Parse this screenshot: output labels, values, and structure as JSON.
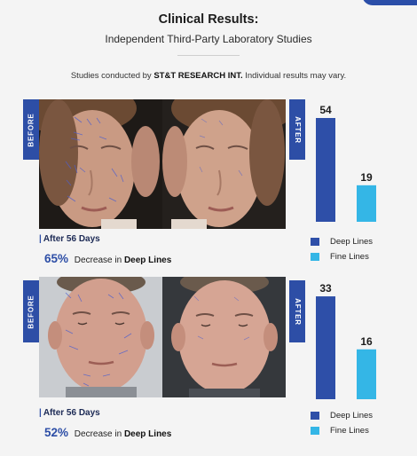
{
  "header": {
    "title": "Clinical Results:",
    "subtitle": "Independent Third-Party Laboratory Studies",
    "note_prefix": "Studies conducted by ",
    "note_company": "ST&T RESEARCH INT.",
    "note_suffix": " Individual results may vary."
  },
  "colors": {
    "deep": "#2e4fa8",
    "fine": "#34b6e6",
    "tab": "#2d4ea6"
  },
  "studies": [
    {
      "before_label": "BEFORE",
      "after_label": "AFTER",
      "days_label": "After 56 Days",
      "percent": "65%",
      "decrease_text": " Decrease in ",
      "metric": "Deep Lines",
      "legend": [
        "Deep Lines",
        "Fine Lines"
      ]
    },
    {
      "before_label": "BEFORE",
      "after_label": "AFTER",
      "days_label": "After 56 Days",
      "percent": "52%",
      "decrease_text": " Decrease in ",
      "metric": "Deep Lines",
      "legend": [
        "Deep Lines",
        "Fine Lines"
      ]
    }
  ],
  "chart_data": [
    {
      "type": "bar",
      "categories": [
        "Deep Lines",
        "Fine Lines"
      ],
      "values": [
        54,
        19
      ],
      "ylim": [
        0,
        60
      ],
      "grid": false,
      "legend_placement": "bottom"
    },
    {
      "type": "bar",
      "categories": [
        "Deep Lines",
        "Fine Lines"
      ],
      "values": [
        33,
        16
      ],
      "ylim": [
        0,
        37
      ],
      "grid": false,
      "legend_placement": "bottom"
    }
  ]
}
